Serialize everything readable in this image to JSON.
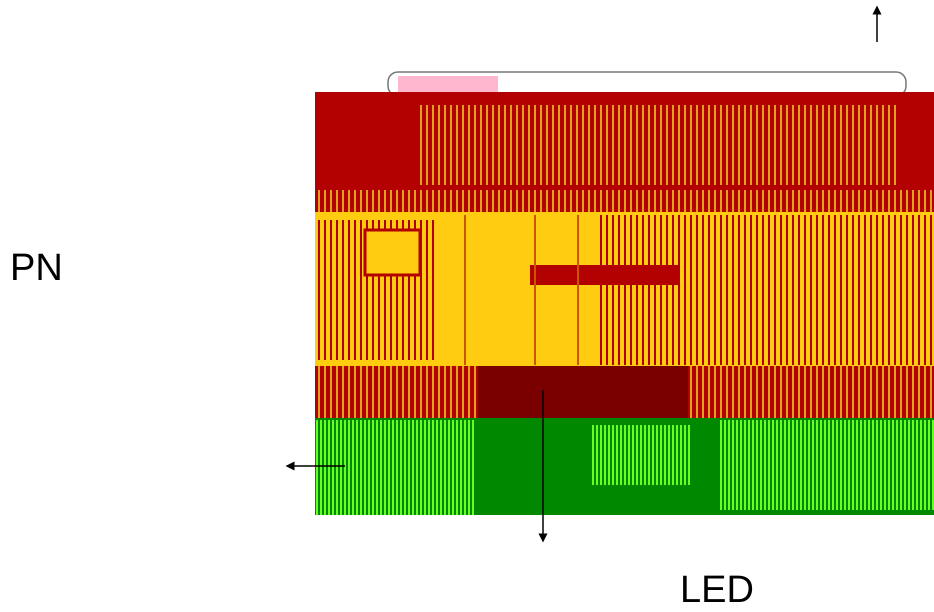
{
  "labels": {
    "left": "PN",
    "bottom": "LED"
  }
}
